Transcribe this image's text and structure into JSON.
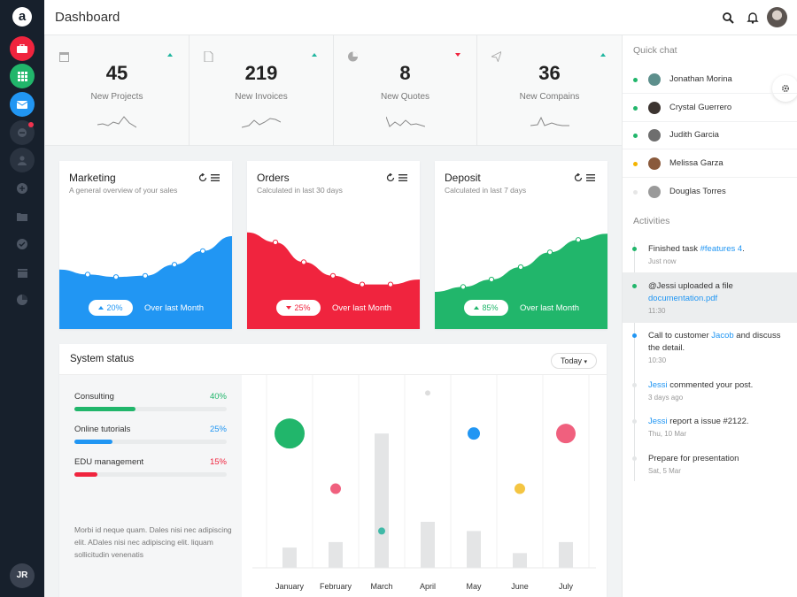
{
  "sidebar": {
    "logo": "a",
    "user_initials": "JR"
  },
  "header": {
    "title": "Dashboard"
  },
  "stats": [
    {
      "value": "45",
      "label": "New Projects",
      "trend": "up"
    },
    {
      "value": "219",
      "label": "New Invoices",
      "trend": "up"
    },
    {
      "value": "8",
      "label": "New Quotes",
      "trend": "down"
    },
    {
      "value": "36",
      "label": "New Compains",
      "trend": "up"
    }
  ],
  "cards": [
    {
      "title": "Marketing",
      "subtitle": "A general overview of your sales",
      "pill": "20%",
      "pill_trend": "up",
      "over": "Over last Month",
      "color": "#2196f3",
      "series": [
        48,
        44,
        42,
        43,
        52,
        63,
        75
      ]
    },
    {
      "title": "Orders",
      "subtitle": "Calculated in last 30 days",
      "pill": "25%",
      "pill_trend": "down",
      "over": "Over last Month",
      "color": "#f0243e",
      "series": [
        78,
        70,
        54,
        43,
        36,
        36,
        40
      ]
    },
    {
      "title": "Deposit",
      "subtitle": "Calculated in last 7 days",
      "pill": "85%",
      "pill_trend": "up",
      "over": "Over last Month",
      "color": "#21b66b",
      "series": [
        30,
        34,
        40,
        50,
        62,
        72,
        77
      ]
    }
  ],
  "system": {
    "title": "System status",
    "filter": "Today",
    "rows": [
      {
        "label": "Consulting",
        "percent": "40%",
        "value": 40,
        "color": "#21b66b"
      },
      {
        "label": "Online tutorials",
        "percent": "25%",
        "value": 25,
        "color": "#2196f3"
      },
      {
        "label": "EDU management",
        "percent": "15%",
        "value": 15,
        "color": "#f0243e"
      }
    ],
    "text": "Morbi id neque quam. Dales nisi nec adipiscing elit. ADales nisi nec adipiscing elit. liquam sollicitudin venenatis"
  },
  "chart_data": {
    "type": "bar",
    "categories": [
      "January",
      "February",
      "March",
      "April",
      "May",
      "June",
      "July"
    ],
    "bars": [
      11,
      14,
      73,
      25,
      20,
      8,
      14
    ],
    "bubbles": [
      {
        "x": "January",
        "y": 73,
        "size": 17,
        "color": "#21b66b"
      },
      {
        "x": "February",
        "y": 43,
        "size": 6,
        "color": "#f0607e"
      },
      {
        "x": "March",
        "y": 20,
        "size": 4,
        "color": "#3fb9a7"
      },
      {
        "x": "April",
        "y": 95,
        "size": 3,
        "color": "#dddddd"
      },
      {
        "x": "May",
        "y": 73,
        "size": 7,
        "color": "#2196f3"
      },
      {
        "x": "June",
        "y": 43,
        "size": 6,
        "color": "#f4c542"
      },
      {
        "x": "July",
        "y": 73,
        "size": 11,
        "color": "#f0607e"
      }
    ],
    "ylim": [
      0,
      100
    ]
  },
  "quick_chat": {
    "title": "Quick chat",
    "contacts": [
      {
        "name": "Jonathan Morina",
        "status_color": "#21b66b"
      },
      {
        "name": "Crystal Guerrero",
        "status_color": "#21b66b"
      },
      {
        "name": "Judith Garcia",
        "status_color": "#21b66b"
      },
      {
        "name": "Melissa Garza",
        "status_color": "#f4b400"
      },
      {
        "name": "Douglas Torres",
        "status_color": "#e0e0e0"
      }
    ]
  },
  "activities": {
    "title": "Activities",
    "items": [
      {
        "pre": "Finished task ",
        "link": "#features 4",
        "post": ".",
        "time": "Just now",
        "dot": "#21b66b"
      },
      {
        "pre": "@Jessi uploaded a file ",
        "link": "documentation.pdf",
        "post": "",
        "time": "11:30",
        "dot": "#21b66b"
      },
      {
        "pre": "Call to customer ",
        "link": "Jacob",
        "post": " and discuss the detail.",
        "time": "10:30",
        "dot": "#2196f3"
      },
      {
        "pre": "",
        "link": "Jessi",
        "post": " commented your post.",
        "time": "3 days ago",
        "dot": "#e0e0e0"
      },
      {
        "pre": "",
        "link": "Jessi",
        "post": " report a issue #2122.",
        "time": "Thu, 10 Mar",
        "dot": "#e0e0e0"
      },
      {
        "pre": "Prepare for presentation",
        "link": "",
        "post": "",
        "time": "Sat, 5 Mar",
        "dot": "#e0e0e0"
      }
    ]
  }
}
